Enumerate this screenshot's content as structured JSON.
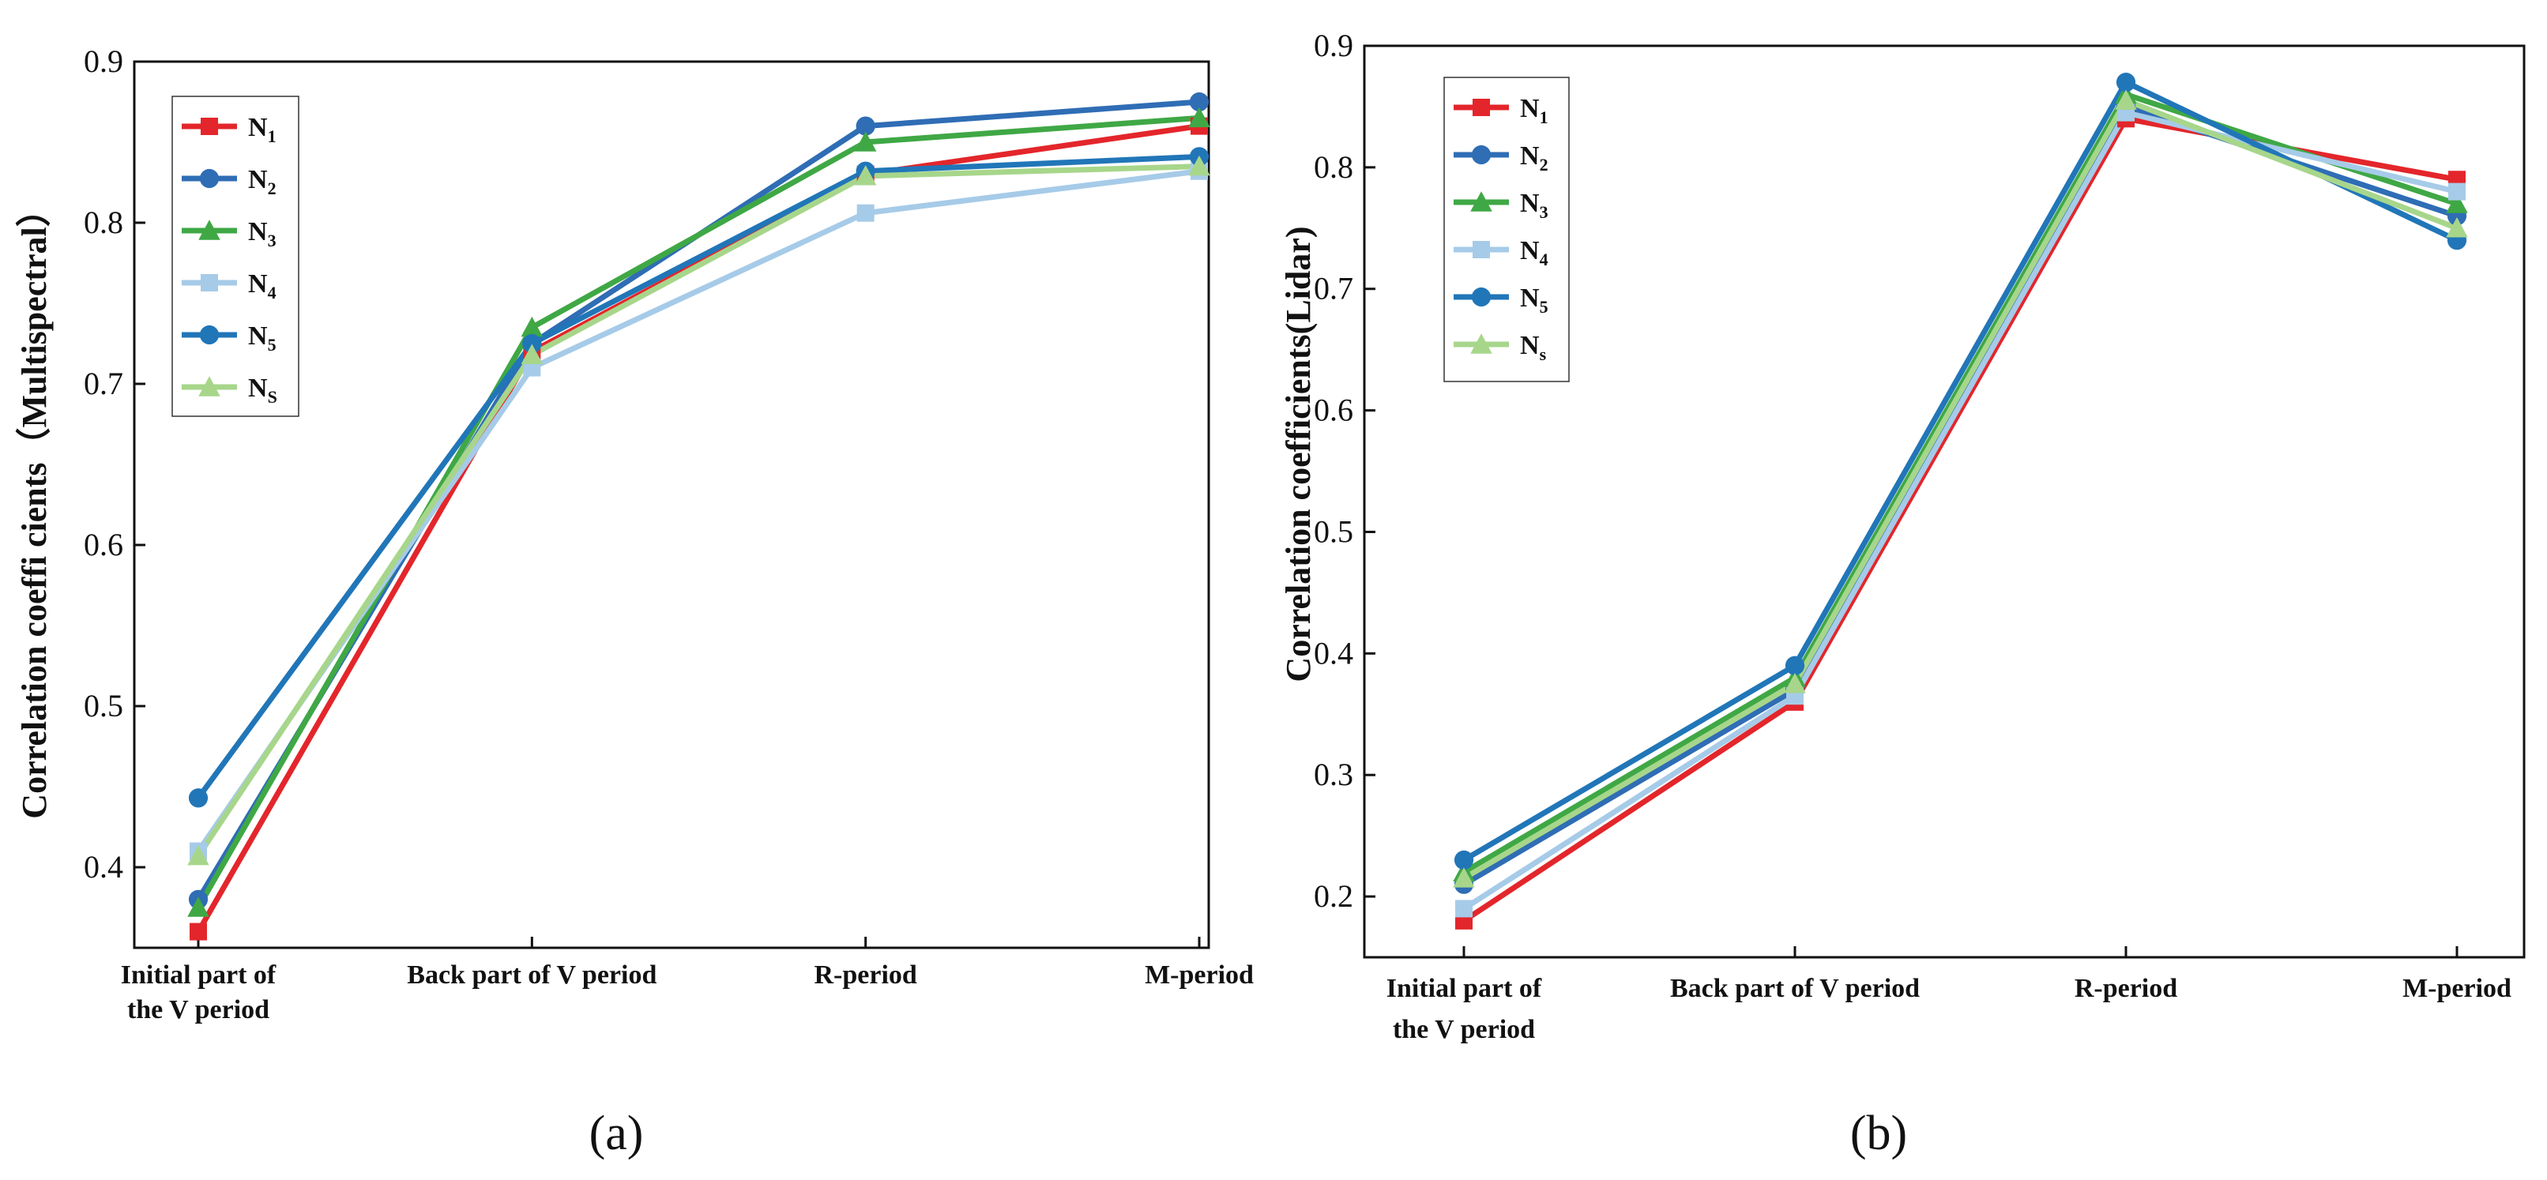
{
  "chart_data": [
    {
      "type": "line",
      "panel_label": "(a)",
      "ylabel": "Correlation coeffi cients（Multispectral）",
      "ylim": [
        0.35,
        0.9
      ],
      "yticks": [
        "0.4",
        "0.5",
        "0.6",
        "0.7",
        "0.8",
        "0.9"
      ],
      "categories": [
        [
          "Initial part of",
          "the V period"
        ],
        [
          "Back part of  V period"
        ],
        [
          "R-period"
        ],
        [
          "M-period"
        ]
      ],
      "legend_position": "top-left",
      "series": [
        {
          "name": "N",
          "sub": "1",
          "color": "#e3262b",
          "marker": "square",
          "values": [
            0.36,
            0.72,
            0.83,
            0.86
          ]
        },
        {
          "name": "N",
          "sub": "2",
          "color": "#2f6db5",
          "marker": "circle",
          "values": [
            0.38,
            0.725,
            0.86,
            0.875
          ]
        },
        {
          "name": "N",
          "sub": "3",
          "color": "#3fa845",
          "marker": "triangle",
          "values": [
            0.375,
            0.735,
            0.85,
            0.865
          ]
        },
        {
          "name": "N",
          "sub": "4",
          "color": "#a6cbe8",
          "marker": "square",
          "values": [
            0.41,
            0.71,
            0.806,
            0.832
          ]
        },
        {
          "name": "N",
          "sub": "5",
          "color": "#2176b8",
          "marker": "circle",
          "values": [
            0.443,
            0.725,
            0.832,
            0.841
          ]
        },
        {
          "name": "N",
          "sub": "S",
          "color": "#a7d68b",
          "marker": "triangle",
          "values": [
            0.407,
            0.718,
            0.829,
            0.835
          ]
        }
      ]
    },
    {
      "type": "line",
      "panel_label": "(b)",
      "ylabel": "Correlation coefficients(Lidar)",
      "ylim": [
        0.15,
        0.9
      ],
      "yticks": [
        "0.2",
        "0.3",
        "0.4",
        "0.5",
        "0.6",
        "0.7",
        "0.8",
        "0.9"
      ],
      "categories": [
        [
          "Initial part of",
          "the V period"
        ],
        [
          "Back part of V period"
        ],
        [
          "R-period"
        ],
        [
          "M-period"
        ]
      ],
      "legend_position": "top-left",
      "series": [
        {
          "name": "N",
          "sub": "1",
          "color": "#e3262b",
          "marker": "square",
          "values": [
            0.18,
            0.36,
            0.84,
            0.79
          ]
        },
        {
          "name": "N",
          "sub": "2",
          "color": "#2f6db5",
          "marker": "circle",
          "values": [
            0.21,
            0.37,
            0.85,
            0.76
          ]
        },
        {
          "name": "N",
          "sub": "3",
          "color": "#3fa845",
          "marker": "triangle",
          "values": [
            0.22,
            0.38,
            0.86,
            0.77
          ]
        },
        {
          "name": "N",
          "sub": "4",
          "color": "#a6cbe8",
          "marker": "square",
          "values": [
            0.19,
            0.365,
            0.845,
            0.78
          ]
        },
        {
          "name": "N",
          "sub": "5",
          "color": "#2176b8",
          "marker": "circle",
          "values": [
            0.23,
            0.39,
            0.87,
            0.74
          ]
        },
        {
          "name": "N",
          "sub": "s",
          "color": "#a7d68b",
          "marker": "triangle",
          "values": [
            0.215,
            0.375,
            0.855,
            0.75
          ]
        }
      ]
    }
  ]
}
